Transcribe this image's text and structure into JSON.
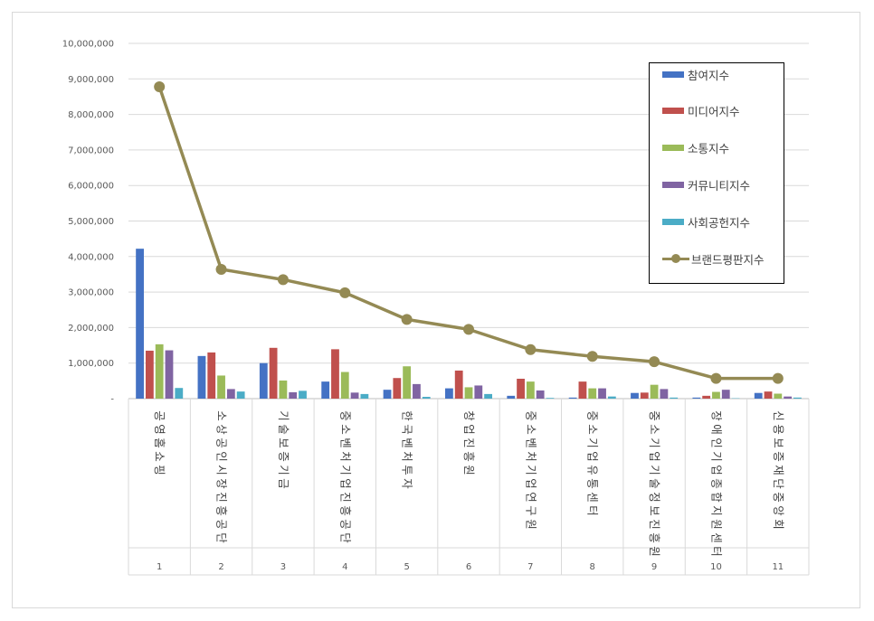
{
  "chart_data": {
    "type": "bar",
    "categories": [
      "공영홈쇼핑",
      "소상공인시장진흥공단",
      "기술보증기금",
      "중소벤처기업진흥공단",
      "한국벤처투자",
      "창업진흥원",
      "중소벤처기업연구원",
      "중소기업유통센터",
      "중소기업기술정보진흥원",
      "장애인기업종합지원센터",
      "신용보증재단중앙회"
    ],
    "x": [
      "1",
      "2",
      "3",
      "4",
      "5",
      "6",
      "7",
      "8",
      "9",
      "10",
      "11"
    ],
    "series": [
      {
        "name": "참여지수",
        "type": "bar",
        "color": "#4472c4",
        "values": [
          4220000,
          1200000,
          1000000,
          480000,
          250000,
          290000,
          80000,
          30000,
          160000,
          30000,
          160000
        ]
      },
      {
        "name": "미디어지수",
        "type": "bar",
        "color": "#c0504d",
        "values": [
          1350000,
          1300000,
          1430000,
          1390000,
          580000,
          790000,
          560000,
          480000,
          170000,
          80000,
          200000
        ]
      },
      {
        "name": "소통지수",
        "type": "bar",
        "color": "#9bbb59",
        "values": [
          1530000,
          650000,
          510000,
          750000,
          910000,
          320000,
          480000,
          290000,
          390000,
          190000,
          140000
        ]
      },
      {
        "name": "커뮤니티지수",
        "type": "bar",
        "color": "#8064a2",
        "values": [
          1360000,
          270000,
          180000,
          170000,
          410000,
          370000,
          230000,
          290000,
          270000,
          250000,
          60000
        ]
      },
      {
        "name": "사회공헌지수",
        "type": "bar",
        "color": "#4bacc6",
        "values": [
          300000,
          200000,
          220000,
          130000,
          50000,
          130000,
          20000,
          60000,
          30000,
          10000,
          30000
        ]
      },
      {
        "name": "브랜드평판지수",
        "type": "line",
        "color": "#948a54",
        "values": [
          8780000,
          3640000,
          3350000,
          2980000,
          2230000,
          1950000,
          1380000,
          1190000,
          1040000,
          570000,
          570000
        ]
      }
    ],
    "ylim": [
      0,
      10000000
    ],
    "yticks": [
      "-",
      "1,000,000",
      "2,000,000",
      "3,000,000",
      "4,000,000",
      "5,000,000",
      "6,000,000",
      "7,000,000",
      "8,000,000",
      "9,000,000",
      "10,000,000"
    ],
    "grid": true,
    "legend_position": "top-right"
  }
}
